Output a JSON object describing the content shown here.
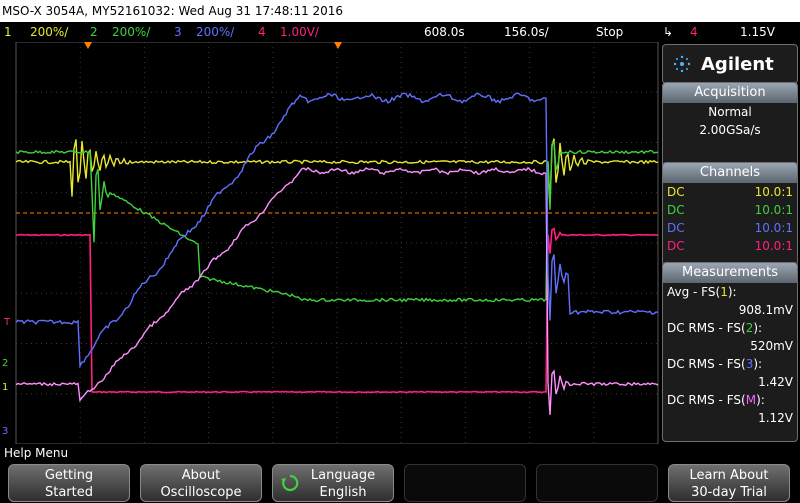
{
  "title": "MSO-X 3054A, MY52161032: Wed Aug 31 17:48:11 2016",
  "status": {
    "ch1_num": "1",
    "ch1_scale": "200%/",
    "ch2_num": "2",
    "ch2_scale": "200%/",
    "ch3_num": "3",
    "ch3_scale": "200%/",
    "ch4_num": "4",
    "ch4_scale": "1.00V/",
    "time_delay": "608.0s",
    "time_scale": "156.0s/",
    "run_state": "Stop",
    "trigger_source": "4",
    "trigger_level": "1.15V"
  },
  "logo": {
    "brand": "Agilent"
  },
  "acquisition": {
    "title": "Acquisition",
    "mode": "Normal",
    "rate": "2.00GSa/s"
  },
  "channels": {
    "title": "Channels",
    "items": [
      {
        "coupling": "DC",
        "probe": "10.0:1",
        "color": "#e8e830"
      },
      {
        "coupling": "DC",
        "probe": "10.0:1",
        "color": "#40d040"
      },
      {
        "coupling": "DC",
        "probe": "10.0:1",
        "color": "#6070ff"
      },
      {
        "coupling": "DC",
        "probe": "10.0:1",
        "color": "#ff2080"
      }
    ]
  },
  "measurements": {
    "title": "Measurements",
    "items": [
      {
        "label_pre": "Avg - FS(",
        "label_ch": "1",
        "label_post": "):",
        "value": "908.1mV",
        "color": "#e8e830"
      },
      {
        "label_pre": "DC RMS - FS(",
        "label_ch": "2",
        "label_post": "):",
        "value": "520mV",
        "color": "#40d040"
      },
      {
        "label_pre": "DC RMS - FS(",
        "label_ch": "3",
        "label_post": "):",
        "value": "1.42V",
        "color": "#6070ff"
      },
      {
        "label_pre": "DC RMS - FS(",
        "label_ch": "M",
        "label_post": "):",
        "value": "1.12V",
        "color": "#ff60ff"
      }
    ]
  },
  "menu": {
    "label": "Help Menu",
    "softkeys": [
      {
        "line1": "Getting",
        "line2": "Started"
      },
      {
        "line1": "About",
        "line2": "Oscilloscope"
      },
      {
        "line1": "Language",
        "line2": "English"
      },
      {
        "line1": "Learn About",
        "line2": "30-day Trial"
      }
    ]
  },
  "markers": {
    "ch1": "1",
    "ch2": "2",
    "ch3": "3",
    "t": "T"
  },
  "colors": {
    "ch1": "#e8e830",
    "ch2": "#40d040",
    "ch3": "#6070ff",
    "ch4": "#ff2080",
    "math": "#ff90ff",
    "trigger": "#ff8000"
  }
}
